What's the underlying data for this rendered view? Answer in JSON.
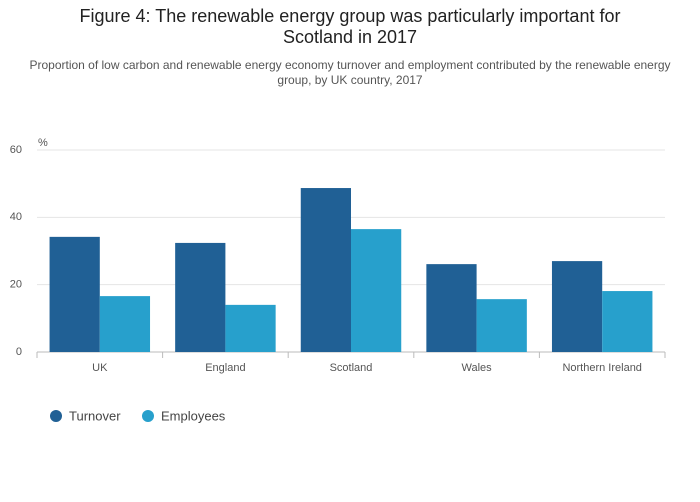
{
  "chart_data": {
    "type": "bar",
    "title": "Figure 4: The renewable energy group was particularly important for Scotland in 2017",
    "subtitle": "Proportion of low carbon and renewable energy economy turnover and employment contributed by the renewable energy group, by UK country, 2017",
    "y_label": "%",
    "categories": [
      "UK",
      "England",
      "Scotland",
      "Wales",
      "Northern Ireland"
    ],
    "series": [
      {
        "name": "Turnover",
        "color": "#206095",
        "values": [
          34.2,
          32.4,
          48.7,
          26.1,
          27.0
        ]
      },
      {
        "name": "Employees",
        "color": "#27a0cc",
        "values": [
          16.6,
          14.0,
          36.5,
          15.7,
          18.1
        ]
      }
    ],
    "ylim": [
      0,
      60
    ],
    "yticks": [
      0,
      20,
      40,
      60
    ],
    "grid": true,
    "legend": "bottom-left"
  }
}
